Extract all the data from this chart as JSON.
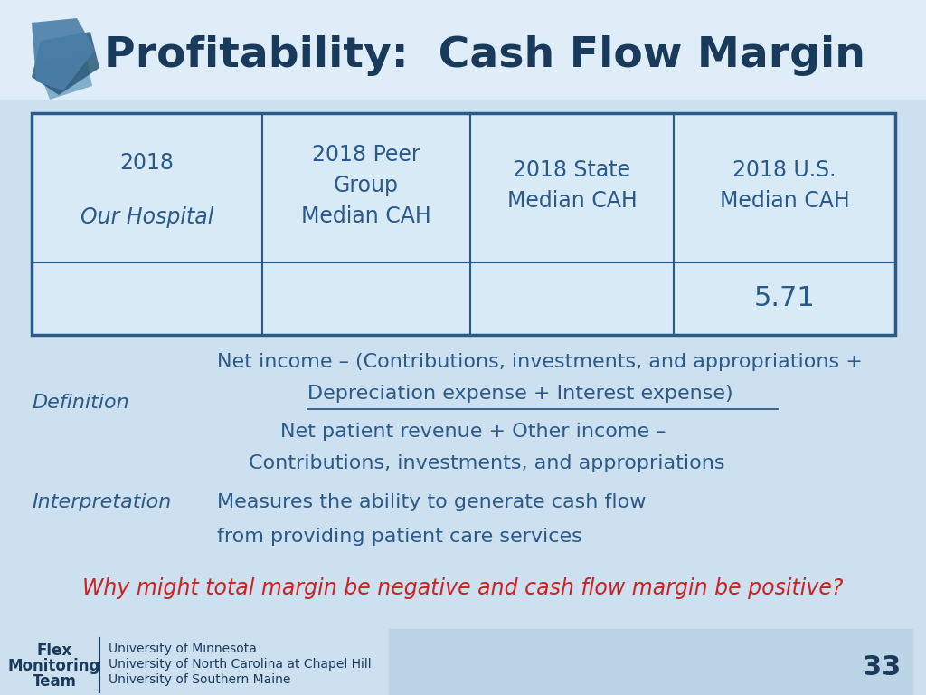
{
  "title": "Profitability:  Cash Flow Margin",
  "title_color": "#1a3a5c",
  "bg_color": "#cde0ef",
  "table_header_col0_line1": "2018",
  "table_header_col0_line2": "Our Hospital",
  "table_header_col1": "2018 Peer\nGroup\nMedian CAH",
  "table_header_col2": "2018 State\nMedian CAH",
  "table_header_col3": "2018 U.S.\nMedian CAH",
  "table_data_row": [
    "",
    "",
    "",
    "5.71"
  ],
  "table_border_color": "#2a5a8a",
  "table_fill_color": "#d8eaf6",
  "text_color": "#2a5a8a",
  "definition_label": "Definition",
  "definition_line1": "Net income – (Contributions, investments, and appropriations +",
  "definition_line2": "Depreciation expense + Interest expense)",
  "definition_line3": "Net patient revenue + Other income –",
  "definition_line4": "Contributions, investments, and appropriations",
  "interpretation_label": "Interpretation",
  "interpretation_line1": "Measures the ability to generate cash flow",
  "interpretation_line2": "from providing patient care services",
  "question_text": "Why might total margin be negative and cash flow margin be positive?",
  "question_color": "#cc2222",
  "footer_org1": "University of Minnesota",
  "footer_org2": "University of North Carolina at Chapel Hill",
  "footer_org3": "University of Southern Maine",
  "footer_team_line1": "Flex",
  "footer_team_line2": "Monitoring",
  "footer_team_line3": "Team",
  "page_number": "33"
}
